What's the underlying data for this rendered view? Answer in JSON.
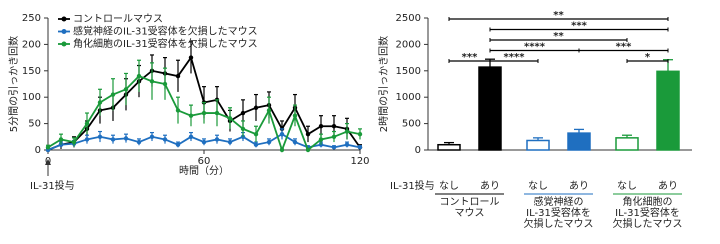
{
  "chart_data": [
    {
      "type": "line",
      "y_label": "5分間の引っかき回数",
      "x_label": "時間（分）",
      "annotation": "IL-31投与",
      "x": [
        0,
        5,
        10,
        15,
        20,
        25,
        30,
        35,
        40,
        45,
        50,
        55,
        60,
        65,
        70,
        75,
        80,
        85,
        90,
        95,
        100,
        105,
        110,
        115,
        120
      ],
      "xlim": [
        0,
        120
      ],
      "xticks": [
        0,
        60,
        120
      ],
      "ylim": [
        0,
        250
      ],
      "yticks": [
        0,
        50,
        100,
        150,
        200,
        250
      ],
      "series": [
        {
          "name": "コントロールマウス",
          "color": "#000000",
          "values": [
            0,
            10,
            15,
            40,
            75,
            80,
            105,
            130,
            150,
            145,
            140,
            175,
            90,
            95,
            55,
            70,
            80,
            85,
            40,
            80,
            30,
            45,
            45,
            40,
            5
          ],
          "errors": [
            2,
            8,
            10,
            15,
            25,
            25,
            30,
            30,
            30,
            30,
            30,
            30,
            30,
            25,
            20,
            25,
            25,
            25,
            15,
            25,
            15,
            20,
            20,
            20,
            5
          ]
        },
        {
          "name": "感覚神経のIL-31受容体を欠損したマウス",
          "color": "#1f6fc0",
          "values": [
            0,
            10,
            12,
            20,
            25,
            20,
            22,
            15,
            25,
            20,
            10,
            25,
            15,
            20,
            15,
            25,
            10,
            15,
            30,
            15,
            5,
            10,
            5,
            10,
            5
          ],
          "errors": [
            1,
            5,
            6,
            8,
            10,
            8,
            8,
            6,
            8,
            8,
            5,
            8,
            6,
            8,
            6,
            8,
            5,
            6,
            10,
            6,
            3,
            5,
            3,
            5,
            3
          ]
        },
        {
          "name": "角化細胞のIL-31受容体を欠損したマウス",
          "color": "#1a9a3a",
          "values": [
            5,
            20,
            15,
            50,
            90,
            105,
            115,
            140,
            130,
            125,
            75,
            65,
            70,
            70,
            60,
            40,
            30,
            75,
            0,
            65,
            0,
            20,
            25,
            35,
            30
          ],
          "errors": [
            4,
            10,
            8,
            20,
            25,
            30,
            30,
            30,
            35,
            30,
            25,
            20,
            20,
            25,
            20,
            15,
            15,
            25,
            2,
            20,
            2,
            10,
            10,
            15,
            10
          ]
        }
      ]
    },
    {
      "type": "bar",
      "y_label": "2時間の引っかき回数",
      "category_axis_label": "IL-31投与",
      "categories": [
        "なし",
        "あり",
        "なし",
        "あり",
        "なし",
        "あり"
      ],
      "values": [
        100,
        1570,
        180,
        320,
        230,
        1490
      ],
      "errors": [
        40,
        150,
        50,
        70,
        50,
        220
      ],
      "colors": [
        "#000000",
        "#000000",
        "#1f6fc0",
        "#1f6fc0",
        "#1a9a3a",
        "#1a9a3a"
      ],
      "filled": [
        false,
        true,
        false,
        true,
        false,
        true
      ],
      "ylim": [
        0,
        2500
      ],
      "yticks": [
        0,
        500,
        1000,
        1500,
        2000,
        2500
      ],
      "groups": [
        {
          "lines": [
            "コントロール",
            "マウス"
          ],
          "color": "#000000"
        },
        {
          "lines": [
            "感覚神経の",
            "IL-31受容体を",
            "欠損したマウス"
          ],
          "color": "#1f6fc0"
        },
        {
          "lines": [
            "角化細胞の",
            "IL-31受容体を",
            "欠損したマウス"
          ],
          "color": "#1a9a3a"
        }
      ],
      "comparisons": [
        {
          "from": 0,
          "to": 5,
          "label": "**"
        },
        {
          "from": 1,
          "to": 5,
          "label": "***"
        },
        {
          "from": 1,
          "to": 4,
          "label": "**"
        },
        {
          "from": 1,
          "to": 3,
          "label": "****"
        },
        {
          "from": 3,
          "to": 5,
          "label": "***"
        },
        {
          "from": 0,
          "to": 1,
          "label": "***"
        },
        {
          "from": 1,
          "to": 2,
          "label": "****"
        },
        {
          "from": 4,
          "to": 5,
          "label": "*"
        }
      ]
    }
  ]
}
